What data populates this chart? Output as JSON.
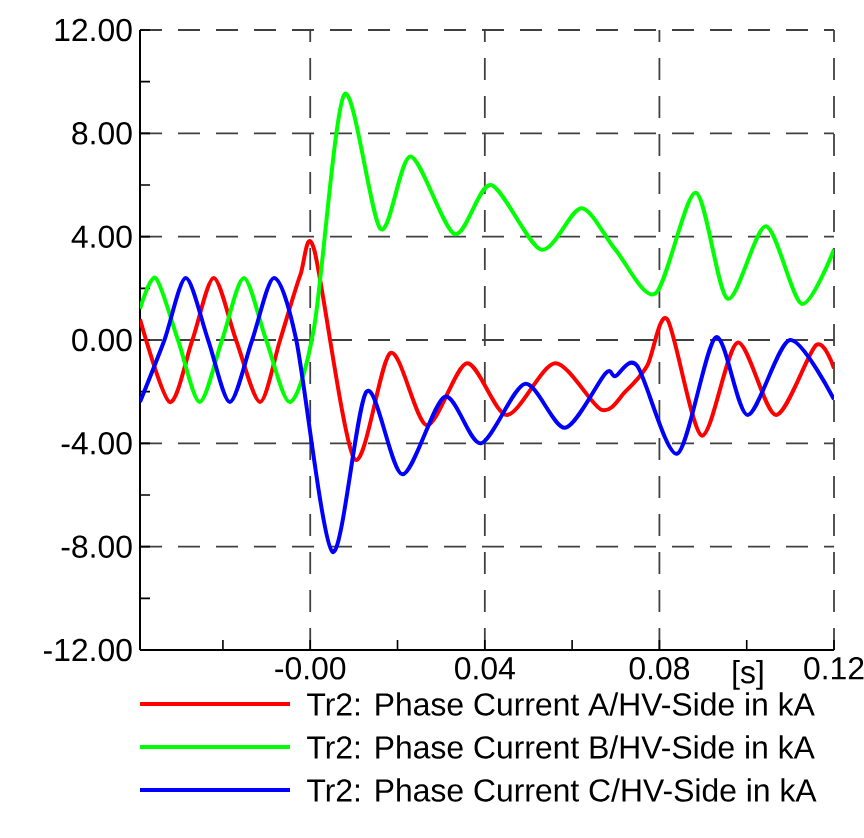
{
  "chart_data": {
    "type": "line",
    "xlabel": "[s]",
    "xlim": [
      -0.039,
      0.12
    ],
    "ylim": [
      -12,
      12
    ],
    "xticks": [
      {
        "value": -0.02,
        "label": null
      },
      {
        "value": 0,
        "label": "-0.00"
      },
      {
        "value": 0.02,
        "label": null
      },
      0.04,
      {
        "value": 0.06,
        "label": null
      },
      0.08,
      {
        "value": 0.1,
        "label": null
      },
      0.12
    ],
    "yticks": [
      {
        "value": -12,
        "label": "-12.00"
      },
      {
        "value": -10,
        "label": null
      },
      {
        "value": -8,
        "label": "-8.00"
      },
      {
        "value": -6,
        "label": null
      },
      {
        "value": -4,
        "label": "-4.00"
      },
      {
        "value": -2,
        "label": null
      },
      {
        "value": 0,
        "label": "0.00"
      },
      {
        "value": 2,
        "label": null
      },
      {
        "value": 4,
        "label": "4.00"
      },
      {
        "value": 6,
        "label": null
      },
      {
        "value": 8,
        "label": "8.00"
      },
      {
        "value": 10,
        "label": null
      },
      {
        "value": 12,
        "label": "12.00"
      }
    ],
    "grid": true,
    "legend": "bottom",
    "series": [
      {
        "name": "Tr2: Phase Current A/HV-Side in kA",
        "color": "#ff0000",
        "x": [
          -0.039,
          -0.0322,
          -0.027,
          -0.0221,
          -0.017,
          -0.0115,
          -0.0069,
          -0.0023,
          0.0009,
          0.0101,
          0.0184,
          0.0267,
          0.0359,
          0.0451,
          0.0561,
          0.0667,
          0.0722,
          0.0772,
          0.0818,
          0.0897,
          0.0979,
          0.1067,
          0.1159,
          0.12
        ],
        "values": [
          0.8,
          -2.4,
          0,
          2.4,
          0,
          -2.4,
          0,
          2.5,
          3.5,
          -4.6,
          -0.5,
          -3.3,
          -0.9,
          -2.9,
          -0.9,
          -2.7,
          -2.0,
          -1.0,
          0.8,
          -3.7,
          -0.1,
          -2.9,
          -0.2,
          -1.1
        ]
      },
      {
        "name": "Tr2: Phase Current B/HV-Side in kA",
        "color": "#00ff00",
        "x": [
          -0.039,
          -0.0354,
          -0.0303,
          -0.0253,
          -0.0202,
          -0.0152,
          -0.0101,
          -0.0046,
          0.0009,
          0.0078,
          0.0161,
          0.023,
          0.0331,
          0.0414,
          0.0529,
          0.0621,
          0.0699,
          0.0791,
          0.0883,
          0.0956,
          0.1044,
          0.1126,
          0.12
        ],
        "values": [
          1.2,
          2.4,
          0,
          -2.4,
          0,
          2.4,
          0,
          -2.4,
          0.5,
          9.5,
          4.3,
          7.1,
          4.1,
          6.0,
          3.5,
          5.1,
          3.5,
          1.8,
          5.7,
          1.6,
          4.4,
          1.4,
          3.5
        ]
      },
      {
        "name": "Tr2: Phase Current C/HV-Side in kA",
        "color": "#0000ff",
        "x": [
          -0.039,
          -0.0334,
          -0.0285,
          -0.0234,
          -0.0184,
          -0.0133,
          -0.0083,
          -0.0032,
          0.0051,
          0.0129,
          0.0211,
          0.0308,
          0.0391,
          0.0492,
          0.0584,
          0.0676,
          0.0699,
          0.0749,
          0.0841,
          0.0929,
          0.1002,
          0.1099,
          0.12
        ],
        "values": [
          -2.4,
          0,
          2.4,
          0,
          -2.4,
          0,
          2.4,
          0,
          -8.2,
          -2.0,
          -5.2,
          -2.2,
          -4.0,
          -1.7,
          -3.4,
          -1.3,
          -1.4,
          -1.0,
          -4.4,
          0.1,
          -2.9,
          0.0,
          -2.3
        ]
      }
    ]
  }
}
